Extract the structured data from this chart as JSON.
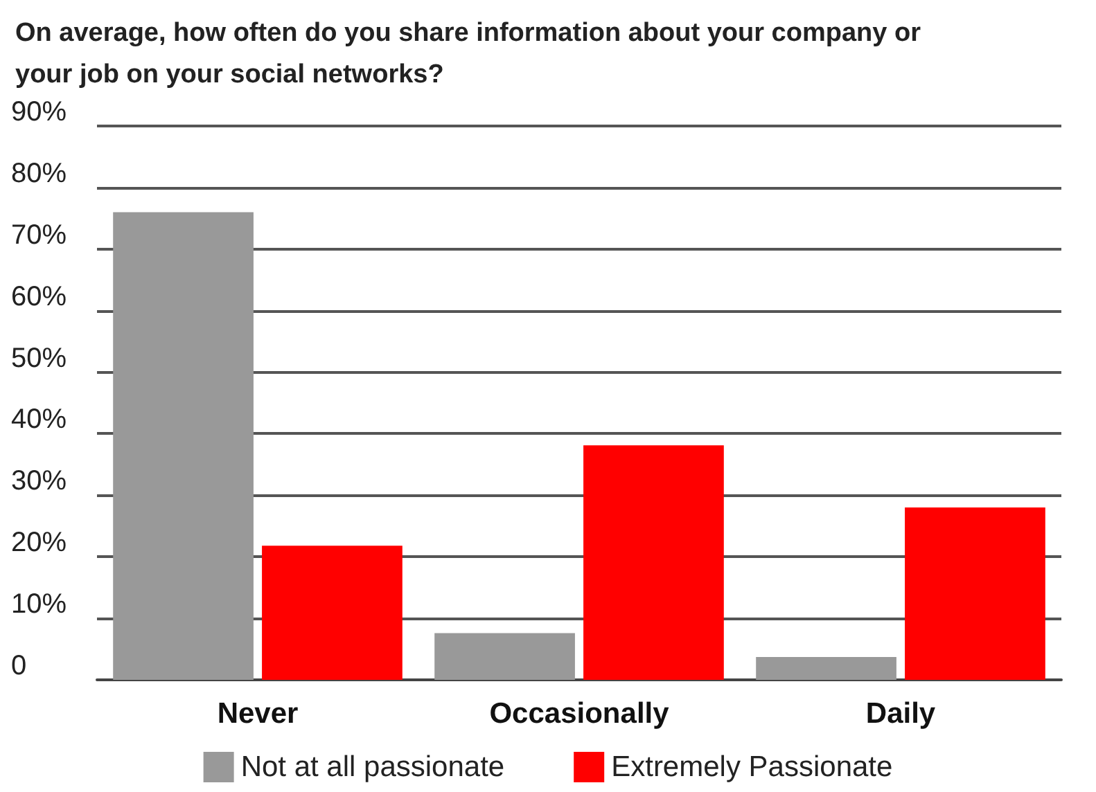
{
  "chart_data": {
    "type": "bar",
    "title": "On average, how often do you share information about your company or\nyour job on your social networks?",
    "categories": [
      "Never",
      "Occasionally",
      "Daily"
    ],
    "series": [
      {
        "name": "Not at all passionate",
        "color": "#999999",
        "values": [
          76,
          7.6,
          3.7
        ]
      },
      {
        "name": "Extremely Passionate",
        "color": "#ff0000",
        "values": [
          21.8,
          38.1,
          28
        ]
      }
    ],
    "ylim": [
      0,
      90
    ],
    "yticks": [
      {
        "value": 0,
        "label": "0"
      },
      {
        "value": 10,
        "label": "10%"
      },
      {
        "value": 20,
        "label": "20%"
      },
      {
        "value": 30,
        "label": "30%"
      },
      {
        "value": 40,
        "label": "40%"
      },
      {
        "value": 50,
        "label": "50%"
      },
      {
        "value": 60,
        "label": "60%"
      },
      {
        "value": 70,
        "label": "70%"
      },
      {
        "value": 80,
        "label": "80%"
      },
      {
        "value": 90,
        "label": "90%"
      }
    ],
    "grid": "y",
    "legend": "bottom"
  }
}
